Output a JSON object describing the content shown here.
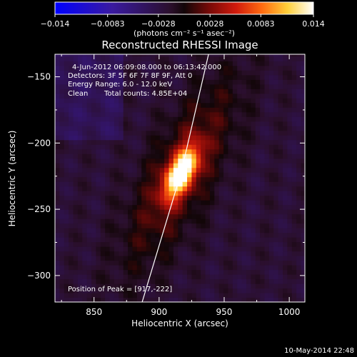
{
  "chart_data": {
    "type": "heatmap",
    "title": "Reconstructed RHESSI Image",
    "xlabel": "Heliocentric X (arcsec)",
    "ylabel": "Heliocentric Y (arcsec)",
    "xlim": [
      820,
      1012
    ],
    "ylim": [
      -320,
      -133
    ],
    "x_ticks": [
      850,
      900,
      950,
      1000
    ],
    "y_ticks": [
      -150,
      -200,
      -250,
      -300
    ],
    "x_tick_labels": [
      "850",
      "900",
      "950",
      "1000"
    ],
    "y_tick_labels": [
      "−150",
      "−200",
      "−250",
      "−300"
    ],
    "colorbar": {
      "range": [
        -0.014,
        0.014
      ],
      "ticks": [
        -0.014,
        -0.0083,
        -0.0028,
        0.0028,
        0.0083,
        0.014
      ],
      "tick_labels": [
        "−0.014",
        "−0.0083",
        "−0.0028",
        "0.0028",
        "0.0083",
        "0.014"
      ],
      "units_label": "(photons cm⁻² s⁻¹ asec⁻²)"
    },
    "annotations": {
      "time_range": "4-Jun-2012 06:09:08.000 to 06:13:42.000",
      "detectors": "Detectors: 3F 5F 6F 7F 8F 9F, Att 0",
      "energy": "Energy Range: 6.0 - 12.0 keV",
      "method": "Clean",
      "counts": "Total counts: 4.85E+04",
      "peak": "Position of Peak = [917,-222]"
    },
    "peak": {
      "x": 917,
      "y": -222,
      "value": 0.014
    },
    "limb_line": [
      [
        887,
        -320
      ],
      [
        917,
        -222
      ],
      [
        938,
        -133
      ]
    ],
    "background_level": -0.002
  },
  "footer": {
    "date_stamp": "10-May-2014 22:48"
  }
}
